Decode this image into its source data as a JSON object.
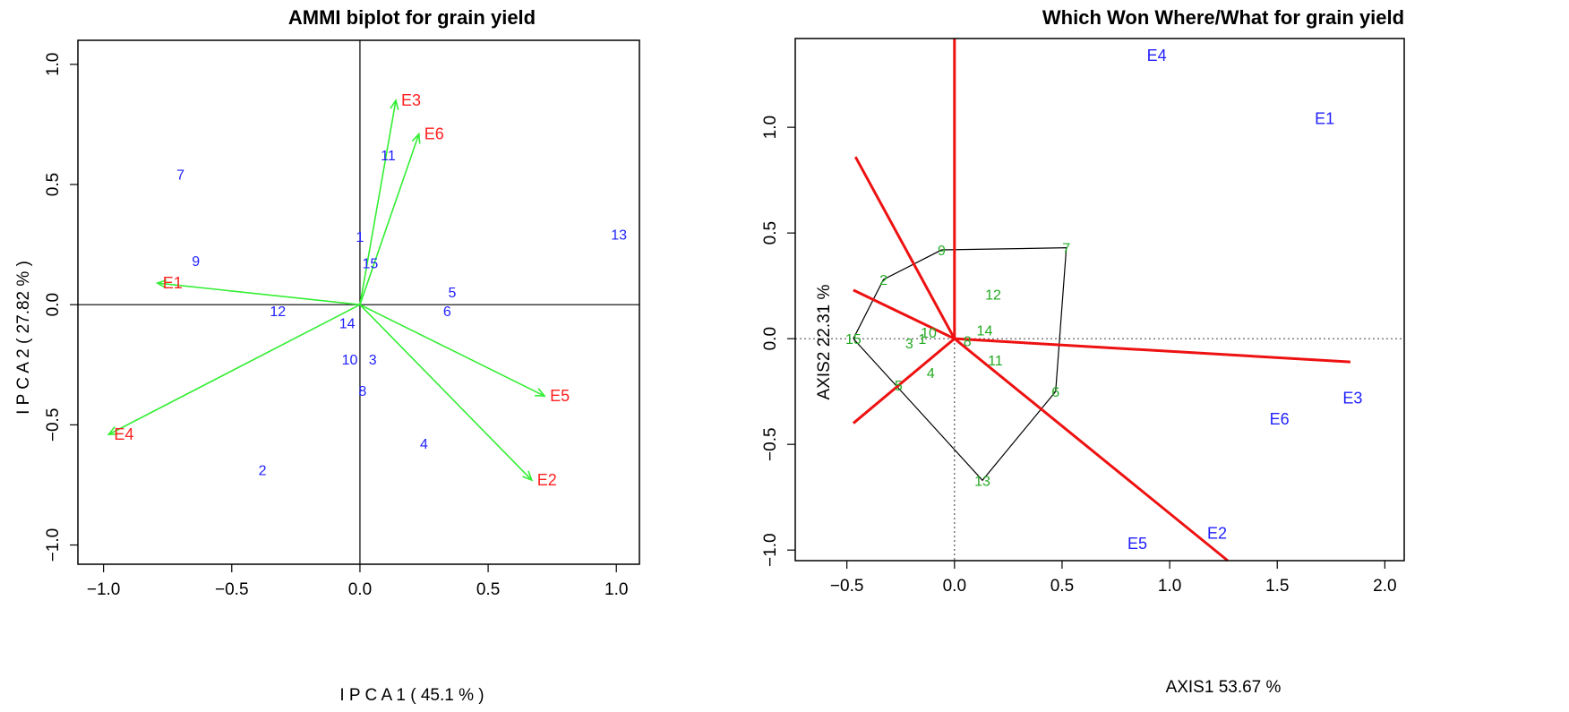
{
  "chart_data": [
    {
      "type": "scatter",
      "title": "AMMI biplot for grain yield",
      "xlabel": "I P C A 1 ( 45.1 % )",
      "ylabel": "I P C A 2 ( 27.82 % )",
      "xlim": [
        -1.1,
        1.09
      ],
      "ylim": [
        -1.08,
        1.1
      ],
      "xticks": [
        -1.0,
        -0.5,
        0.0,
        0.5,
        1.0
      ],
      "yticks": [
        -1.0,
        -0.5,
        0.0,
        0.5,
        1.0
      ],
      "xtick_labels": [
        "−1.0",
        "−0.5",
        "0.0",
        "0.5",
        "1.0"
      ],
      "ytick_labels": [
        "−1.0",
        "−0.5",
        "0.0",
        "0.5",
        "1.0"
      ],
      "reference_lines": "solid at x=0 and y=0",
      "genotypes": {
        "color": "#1f1fff",
        "points": [
          {
            "label": "1",
            "x": 0.0,
            "y": 0.28
          },
          {
            "label": "2",
            "x": -0.38,
            "y": -0.69
          },
          {
            "label": "3",
            "x": 0.05,
            "y": -0.23
          },
          {
            "label": "4",
            "x": 0.25,
            "y": -0.58
          },
          {
            "label": "5",
            "x": 0.36,
            "y": 0.05
          },
          {
            "label": "6",
            "x": 0.34,
            "y": -0.03
          },
          {
            "label": "7",
            "x": -0.7,
            "y": 0.54
          },
          {
            "label": "8",
            "x": 0.01,
            "y": -0.36
          },
          {
            "label": "9",
            "x": -0.64,
            "y": 0.18
          },
          {
            "label": "10",
            "x": -0.04,
            "y": -0.23
          },
          {
            "label": "11",
            "x": 0.11,
            "y": 0.62
          },
          {
            "label": "12",
            "x": -0.32,
            "y": -0.03
          },
          {
            "label": "13",
            "x": 1.01,
            "y": 0.29
          },
          {
            "label": "14",
            "x": -0.05,
            "y": -0.08
          },
          {
            "label": "15",
            "x": 0.04,
            "y": 0.17
          }
        ]
      },
      "environments": {
        "color": "#ff2020",
        "arrow_color": "#33ee33",
        "vectors": [
          {
            "label": "E1",
            "x": -0.79,
            "y": 0.09
          },
          {
            "label": "E2",
            "x": 0.67,
            "y": -0.73
          },
          {
            "label": "E3",
            "x": 0.14,
            "y": 0.85
          },
          {
            "label": "E4",
            "x": -0.98,
            "y": -0.54
          },
          {
            "label": "E5",
            "x": 0.72,
            "y": -0.38
          },
          {
            "label": "E6",
            "x": 0.23,
            "y": 0.71
          }
        ]
      }
    },
    {
      "type": "scatter",
      "title": "Which Won Where/What for grain yield",
      "xlabel": "AXIS1 53.67 %",
      "ylabel": "AXIS2 22.31 %",
      "xlim": [
        -0.74,
        2.09
      ],
      "ylim": [
        -1.05,
        1.42
      ],
      "xticks": [
        -0.5,
        0.0,
        0.5,
        1.0,
        1.5,
        2.0
      ],
      "yticks": [
        -1.0,
        -0.5,
        0.0,
        0.5,
        1.0
      ],
      "xtick_labels": [
        "−0.5",
        "0.0",
        "0.5",
        "1.0",
        "1.5",
        "2.0"
      ],
      "ytick_labels": [
        "−1.0",
        "−0.5",
        "0.0",
        "0.5",
        "1.0"
      ],
      "reference_lines": "dotted at x=0 and y=0",
      "genotypes": {
        "color": "#22aa22",
        "points": [
          {
            "label": "1",
            "x": -0.15,
            "y": 0.0
          },
          {
            "label": "2",
            "x": -0.33,
            "y": 0.28
          },
          {
            "label": "3",
            "x": -0.21,
            "y": -0.02
          },
          {
            "label": "4",
            "x": -0.11,
            "y": -0.16
          },
          {
            "label": "5",
            "x": -0.26,
            "y": -0.22
          },
          {
            "label": "6",
            "x": 0.47,
            "y": -0.25
          },
          {
            "label": "7",
            "x": 0.52,
            "y": 0.43
          },
          {
            "label": "8",
            "x": 0.06,
            "y": -0.01
          },
          {
            "label": "9",
            "x": -0.06,
            "y": 0.42
          },
          {
            "label": "10",
            "x": -0.12,
            "y": 0.03
          },
          {
            "label": "11",
            "x": 0.19,
            "y": -0.1
          },
          {
            "label": "12",
            "x": 0.18,
            "y": 0.21
          },
          {
            "label": "13",
            "x": 0.13,
            "y": -0.67
          },
          {
            "label": "14",
            "x": 0.14,
            "y": 0.04
          },
          {
            "label": "15",
            "x": -0.47,
            "y": 0.0
          }
        ]
      },
      "environments": {
        "color": "#1f1fff",
        "points": [
          {
            "label": "E1",
            "x": 1.72,
            "y": 1.04
          },
          {
            "label": "E2",
            "x": 1.22,
            "y": -0.92
          },
          {
            "label": "E3",
            "x": 1.85,
            "y": -0.28
          },
          {
            "label": "E4",
            "x": 0.94,
            "y": 1.34
          },
          {
            "label": "E5",
            "x": 0.85,
            "y": -0.97
          },
          {
            "label": "E6",
            "x": 1.51,
            "y": -0.38
          }
        ]
      },
      "polygon": [
        "15",
        "2",
        "9",
        "7",
        "6",
        "13",
        "15"
      ],
      "sector_rays": [
        {
          "x": 0.0,
          "y": 1.42
        },
        {
          "x": -0.46,
          "y": 0.86
        },
        {
          "x": -0.47,
          "y": 0.23
        },
        {
          "x": -0.47,
          "y": -0.4
        },
        {
          "x": 1.27,
          "y": -1.05
        },
        {
          "x": 1.84,
          "y": -0.11
        }
      ],
      "ray_color": "#ee1111"
    }
  ]
}
